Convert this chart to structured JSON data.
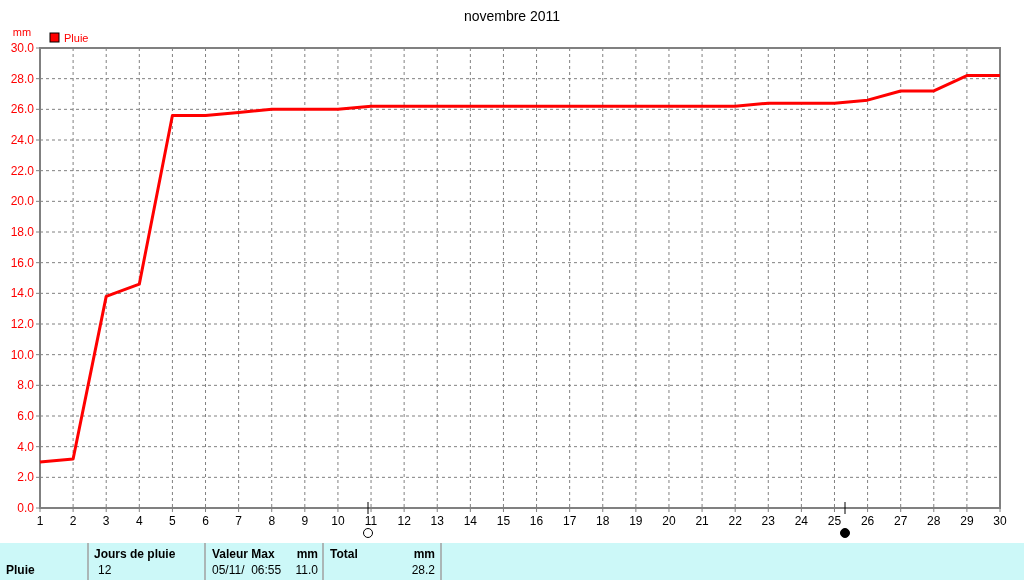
{
  "chart_data": {
    "type": "line",
    "title": "novembre 2011",
    "ylabel": "mm",
    "x": [
      1,
      2,
      3,
      4,
      5,
      6,
      7,
      8,
      9,
      10,
      11,
      12,
      13,
      14,
      15,
      16,
      17,
      18,
      19,
      20,
      21,
      22,
      23,
      24,
      25,
      26,
      27,
      28,
      29,
      30
    ],
    "series": [
      {
        "name": "Pluie",
        "color": "#ff0000",
        "values": [
          3.0,
          3.2,
          13.8,
          14.6,
          25.6,
          25.6,
          25.8,
          26.0,
          26.0,
          26.0,
          26.2,
          26.2,
          26.2,
          26.2,
          26.2,
          26.2,
          26.2,
          26.2,
          26.2,
          26.2,
          26.2,
          26.2,
          26.4,
          26.4,
          26.4,
          26.6,
          27.2,
          27.2,
          28.2,
          28.2
        ]
      }
    ],
    "xlim": [
      1,
      30
    ],
    "xticks": [
      1,
      2,
      3,
      4,
      5,
      6,
      7,
      8,
      9,
      10,
      11,
      12,
      13,
      14,
      15,
      16,
      17,
      18,
      19,
      20,
      21,
      22,
      23,
      24,
      25,
      26,
      27,
      28,
      29,
      30
    ],
    "ylim": [
      0,
      30
    ],
    "yticks": [
      {
        "value": 0,
        "label": "0.0"
      },
      {
        "value": 2,
        "label": "2.0"
      },
      {
        "value": 4,
        "label": "4.0"
      },
      {
        "value": 6,
        "label": "6.0"
      },
      {
        "value": 8,
        "label": "8.0"
      },
      {
        "value": 10,
        "label": "10.0"
      },
      {
        "value": 12,
        "label": "12.0"
      },
      {
        "value": 14,
        "label": "14.0"
      },
      {
        "value": 16,
        "label": "16.0"
      },
      {
        "value": 18,
        "label": "18.0"
      },
      {
        "value": 20,
        "label": "20.0"
      },
      {
        "value": 22,
        "label": "22.0"
      },
      {
        "value": 24,
        "label": "24.0"
      },
      {
        "value": 26,
        "label": "26.0"
      },
      {
        "value": 28,
        "label": "28.0"
      },
      {
        "value": 30,
        "label": "30.0"
      }
    ],
    "grid": true,
    "legend": "top left",
    "marker": "none",
    "line_style": "solid",
    "annotations": [
      "Pluie",
      "Jours de pluie\n12",
      "Valeur Max",
      "mm",
      "05/11/  06:55",
      "11.0",
      "Total",
      "mm",
      "28.2"
    ]
  }
}
